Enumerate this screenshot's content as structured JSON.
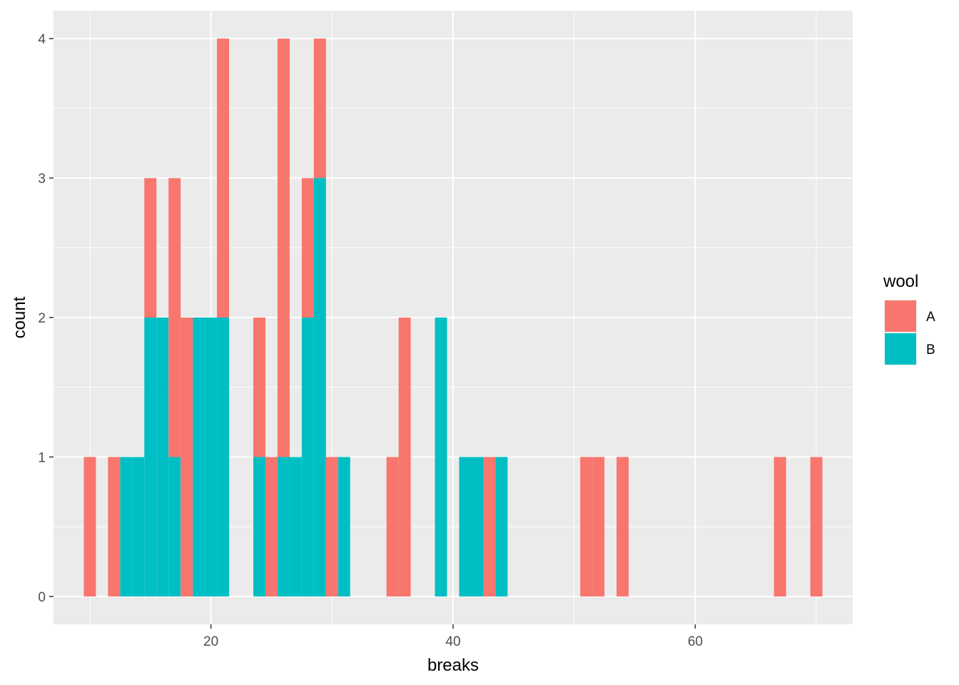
{
  "chart_data": {
    "type": "bar",
    "subtype": "stacked-histogram",
    "xlabel": "breaks",
    "ylabel": "count",
    "xlim": [
      7.0,
      73.0
    ],
    "ylim": [
      -0.2,
      4.2
    ],
    "x_ticks": [
      20,
      40,
      60
    ],
    "x_tick_labels": [
      "20",
      "40",
      "60"
    ],
    "y_ticks": [
      0,
      1,
      2,
      3,
      4
    ],
    "y_tick_labels": [
      "0",
      "1",
      "2",
      "3",
      "4"
    ],
    "bin_width": 1.0,
    "grid": true,
    "legend": {
      "title": "wool",
      "position": "right",
      "entries": [
        {
          "label": "A",
          "color": "#F8766D"
        },
        {
          "label": "B",
          "color": "#00BFC4"
        }
      ]
    },
    "series": [
      {
        "name": "A",
        "color": "#F8766D",
        "bins": [
          {
            "x": 10,
            "count": 1
          },
          {
            "x": 12,
            "count": 1
          },
          {
            "x": 15,
            "count": 1
          },
          {
            "x": 17,
            "count": 2
          },
          {
            "x": 18,
            "count": 2
          },
          {
            "x": 21,
            "count": 2
          },
          {
            "x": 24,
            "count": 1
          },
          {
            "x": 25,
            "count": 1
          },
          {
            "x": 26,
            "count": 3
          },
          {
            "x": 28,
            "count": 1
          },
          {
            "x": 29,
            "count": 1
          },
          {
            "x": 30,
            "count": 1
          },
          {
            "x": 35,
            "count": 1
          },
          {
            "x": 36,
            "count": 2
          },
          {
            "x": 43,
            "count": 1
          },
          {
            "x": 51,
            "count": 1
          },
          {
            "x": 52,
            "count": 1
          },
          {
            "x": 54,
            "count": 1
          },
          {
            "x": 67,
            "count": 1
          },
          {
            "x": 70,
            "count": 1
          }
        ]
      },
      {
        "name": "B",
        "color": "#00BFC4",
        "bins": [
          {
            "x": 13,
            "count": 1
          },
          {
            "x": 14,
            "count": 1
          },
          {
            "x": 15,
            "count": 2
          },
          {
            "x": 16,
            "count": 2
          },
          {
            "x": 17,
            "count": 1
          },
          {
            "x": 19,
            "count": 2
          },
          {
            "x": 20,
            "count": 2
          },
          {
            "x": 21,
            "count": 2
          },
          {
            "x": 24,
            "count": 1
          },
          {
            "x": 26,
            "count": 1
          },
          {
            "x": 27,
            "count": 1
          },
          {
            "x": 28,
            "count": 2
          },
          {
            "x": 29,
            "count": 3
          },
          {
            "x": 31,
            "count": 1
          },
          {
            "x": 39,
            "count": 2
          },
          {
            "x": 41,
            "count": 1
          },
          {
            "x": 42,
            "count": 1
          },
          {
            "x": 44,
            "count": 1
          }
        ]
      }
    ]
  }
}
